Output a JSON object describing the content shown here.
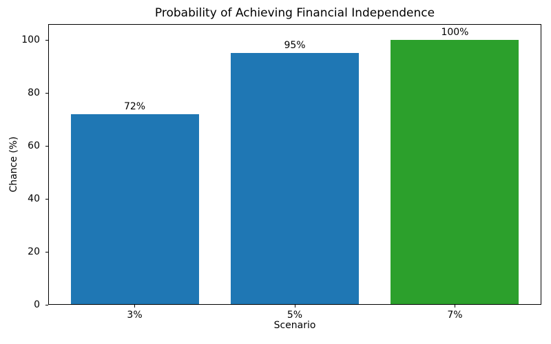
{
  "chart_data": {
    "type": "bar",
    "title": "Probability of Achieving Financial Independence",
    "xlabel": "Scenario",
    "ylabel": "Chance (%)",
    "categories": [
      "3%",
      "5%",
      "7%"
    ],
    "values": [
      72,
      95,
      100
    ],
    "bar_labels": [
      "72%",
      "95%",
      "100%"
    ],
    "bar_colors": [
      "#1f77b4",
      "#1f77b4",
      "#2ca02c"
    ],
    "yticks": [
      0,
      20,
      40,
      60,
      80,
      100
    ],
    "ylim": [
      0,
      106
    ],
    "xlim": [
      -0.54,
      2.54
    ],
    "bar_width": 0.8,
    "grid": false,
    "legend": "none",
    "spine_color": "#000000",
    "text_color": "#000000",
    "background_color": "#ffffff"
  }
}
